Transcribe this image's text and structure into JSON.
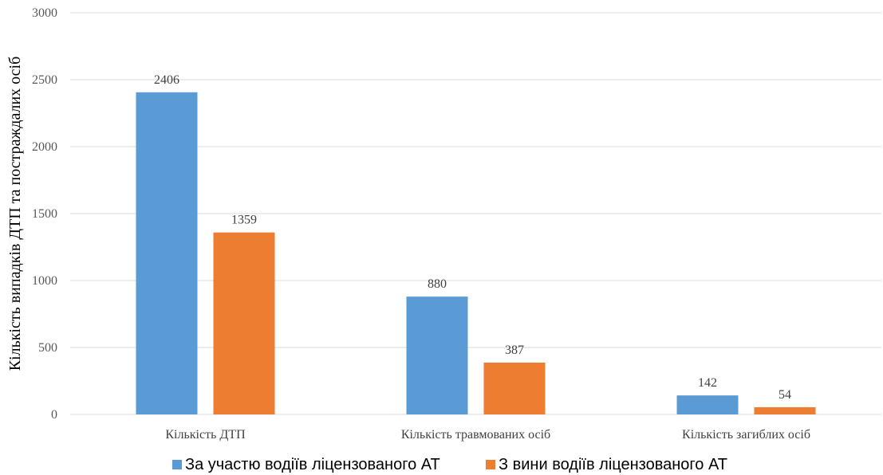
{
  "chart_data": {
    "type": "bar",
    "title": "",
    "xlabel": "",
    "ylabel": "Кількість випадків ДТП та постраждалих осіб",
    "ylim": [
      0,
      3000
    ],
    "yticks": [
      0,
      500,
      1000,
      1500,
      2000,
      2500,
      3000
    ],
    "grid": true,
    "legend_position": "bottom",
    "categories": [
      "Кількість ДТП",
      "Кількість травмованих осіб",
      "Кількість загиблих осіб"
    ],
    "series": [
      {
        "name": "За участю водіїв ліцензованого АТ",
        "color": "#5B9BD5",
        "values": [
          2406,
          880,
          142
        ]
      },
      {
        "name": "З вини водіїв ліцензованого АТ",
        "color": "#ED7D31",
        "values": [
          1359,
          387,
          54
        ]
      }
    ]
  }
}
